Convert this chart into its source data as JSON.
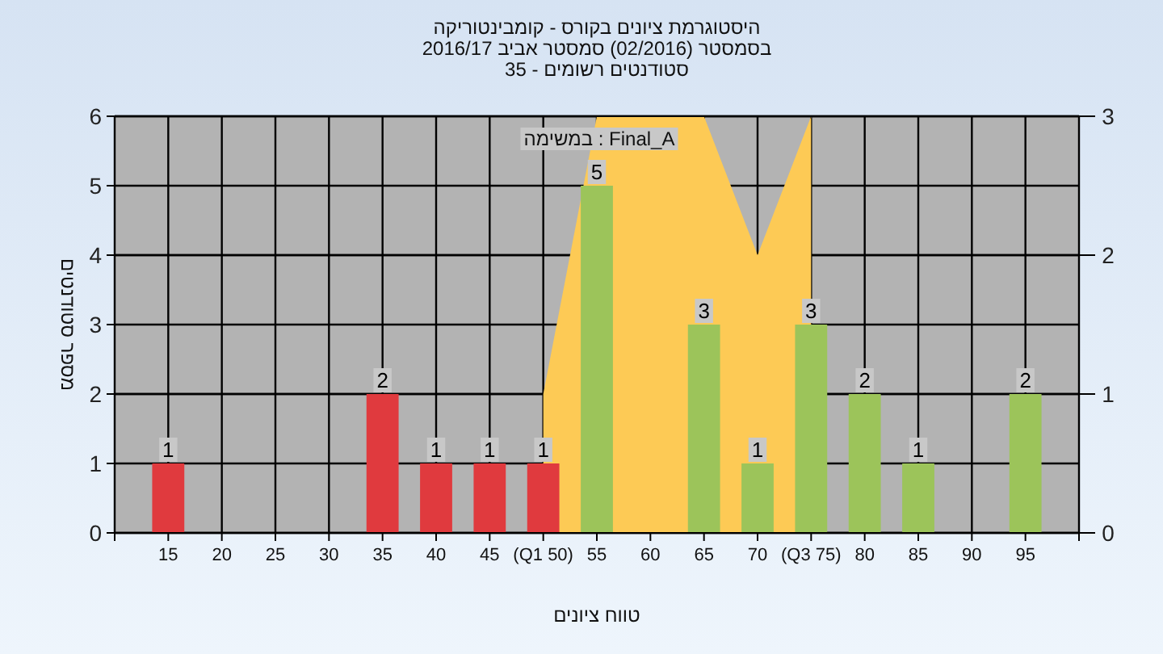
{
  "chart_data": {
    "type": "bar",
    "title": "היסטוגרמת ציונים בקורס - קומבינטוריקה",
    "subtitle": "בסמסטר  (02/2016)  סמסטר אביב 2016/17\nסטודנטים רשומים - 35",
    "xlabel": "טווח ציונים",
    "ylabel": "מספר סטודנטים",
    "annotations": [
      "במשימה : Final_A"
    ],
    "xlim": [
      10,
      100
    ],
    "xticks": [
      {
        "value": 10,
        "label": null
      },
      15,
      20,
      25,
      30,
      35,
      40,
      45,
      {
        "value": 50,
        "label": "(Q1 50)"
      },
      55,
      60,
      65,
      70,
      {
        "value": 75,
        "label": "(Q3 75)"
      },
      80,
      85,
      90,
      95,
      {
        "value": 100,
        "label": null
      }
    ],
    "ylim": [
      0,
      6
    ],
    "yticks": [
      0,
      1,
      2,
      3,
      4,
      5,
      6
    ],
    "y2lim": [
      0,
      3
    ],
    "y2ticks": [
      0,
      1,
      2,
      3
    ],
    "grid": true,
    "series": [
      {
        "type": "area",
        "axis": "y2",
        "x": [
          50,
          55,
          60,
          65,
          70,
          75
        ],
        "values": [
          1,
          3,
          3,
          3,
          2,
          3
        ],
        "color": "#fdca55"
      },
      {
        "x": [
          15,
          35,
          40,
          45,
          50,
          55,
          65,
          70,
          75,
          80,
          85,
          95
        ],
        "values": [
          1,
          2,
          1,
          1,
          1,
          5,
          3,
          1,
          3,
          2,
          1,
          2
        ],
        "value_labels": [
          "1",
          "2",
          "1",
          "1",
          "1",
          "5",
          "3",
          "1",
          "3",
          "2",
          "1",
          "2"
        ],
        "colors": [
          "#e03a3e",
          "#e03a3e",
          "#e03a3e",
          "#e03a3e",
          "#e03a3e",
          "#9cc45a",
          "#9cc45a",
          "#9cc45a",
          "#9cc45a",
          "#9cc45a",
          "#9cc45a",
          "#9cc45a"
        ]
      }
    ]
  }
}
